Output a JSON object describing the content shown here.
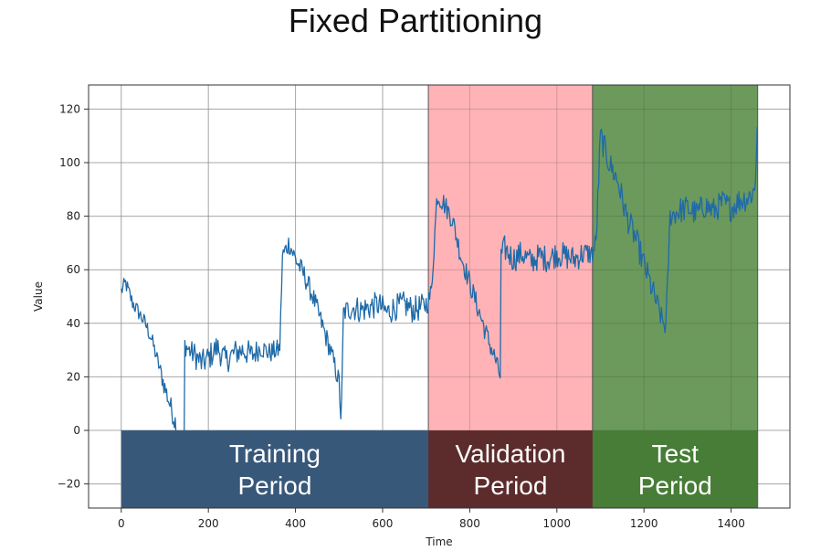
{
  "page": {
    "title": "Fixed Partitioning"
  },
  "chart_data": {
    "type": "line",
    "title": "",
    "xlabel": "Time",
    "ylabel": "Value",
    "xlim": [
      -75,
      1535
    ],
    "ylim": [
      -29,
      129
    ],
    "xticks": [
      0,
      200,
      400,
      600,
      800,
      1000,
      1200,
      1400
    ],
    "yticks": [
      -20,
      0,
      20,
      40,
      60,
      80,
      100,
      120
    ],
    "grid": true,
    "series_color": "#1f6aa8",
    "periods": [
      {
        "name": "Training Period",
        "line1": "Training",
        "line2": "Period",
        "x_start": 0,
        "x_end": 705,
        "shade_color": null,
        "label_bg": "#38587a"
      },
      {
        "name": "Validation Period",
        "line1": "Validation",
        "line2": "Period",
        "x_start": 705,
        "x_end": 1082,
        "shade_color": "#ffb3b6",
        "label_bg": "#5c2c2c"
      },
      {
        "name": "Test Period",
        "line1": "Test",
        "line2": "Period",
        "x_start": 1082,
        "x_end": 1461,
        "shade_color": "#6b9a5c",
        "label_bg": "#477d37"
      }
    ],
    "series": [
      {
        "x": [
          0,
          10,
          25,
          40,
          55,
          70,
          85,
          100,
          115,
          130,
          145,
          146,
          155,
          170,
          185,
          200,
          220,
          240,
          260,
          280,
          300,
          320,
          340,
          360,
          364,
          370,
          385,
          400,
          420,
          440,
          460,
          480,
          500,
          505,
          510,
          530,
          550,
          570,
          590,
          610,
          630,
          650,
          670,
          690,
          705,
          712,
          725,
          740,
          760,
          780,
          800,
          820,
          840,
          860,
          870,
          872,
          880,
          900,
          920,
          940,
          960,
          980,
          1000,
          1020,
          1040,
          1060,
          1082,
          1090,
          1100,
          1120,
          1140,
          1160,
          1180,
          1200,
          1220,
          1240,
          1250,
          1260,
          1280,
          1300,
          1320,
          1340,
          1360,
          1380,
          1400,
          1420,
          1440,
          1455,
          1461
        ],
        "y": [
          52,
          55,
          48,
          44,
          40,
          34,
          25,
          16,
          8,
          0,
          -15,
          32,
          30,
          28,
          25,
          27,
          31,
          26,
          29,
          30,
          28,
          31,
          29,
          30,
          31,
          65,
          70,
          64,
          58,
          50,
          40,
          30,
          18,
          2,
          44,
          46,
          45,
          46,
          47,
          44,
          46,
          47,
          45,
          46,
          48,
          52,
          88,
          85,
          79,
          65,
          55,
          45,
          35,
          26,
          20,
          65,
          68,
          64,
          66,
          63,
          65,
          64,
          66,
          65,
          64,
          66,
          66,
          70,
          110,
          100,
          93,
          80,
          72,
          62,
          52,
          42,
          38,
          80,
          82,
          83,
          81,
          84,
          82,
          85,
          83,
          86,
          87,
          90,
          120
        ],
        "noise": [
          3,
          3,
          3,
          3,
          3,
          3,
          3,
          4,
          4,
          5,
          6,
          4,
          4,
          5,
          5,
          5,
          5,
          5,
          5,
          5,
          5,
          4,
          4,
          4,
          3,
          4,
          4,
          4,
          4,
          4,
          4,
          4,
          4,
          2,
          4,
          5,
          5,
          5,
          5,
          5,
          5,
          5,
          5,
          5,
          4,
          4,
          4,
          4,
          4,
          4,
          4,
          4,
          4,
          4,
          3,
          4,
          5,
          5,
          5,
          5,
          5,
          5,
          5,
          5,
          5,
          5,
          4,
          5,
          5,
          5,
          5,
          5,
          5,
          5,
          5,
          4,
          3,
          4,
          5,
          5,
          5,
          5,
          5,
          5,
          5,
          5,
          5,
          5,
          4
        ]
      }
    ]
  }
}
